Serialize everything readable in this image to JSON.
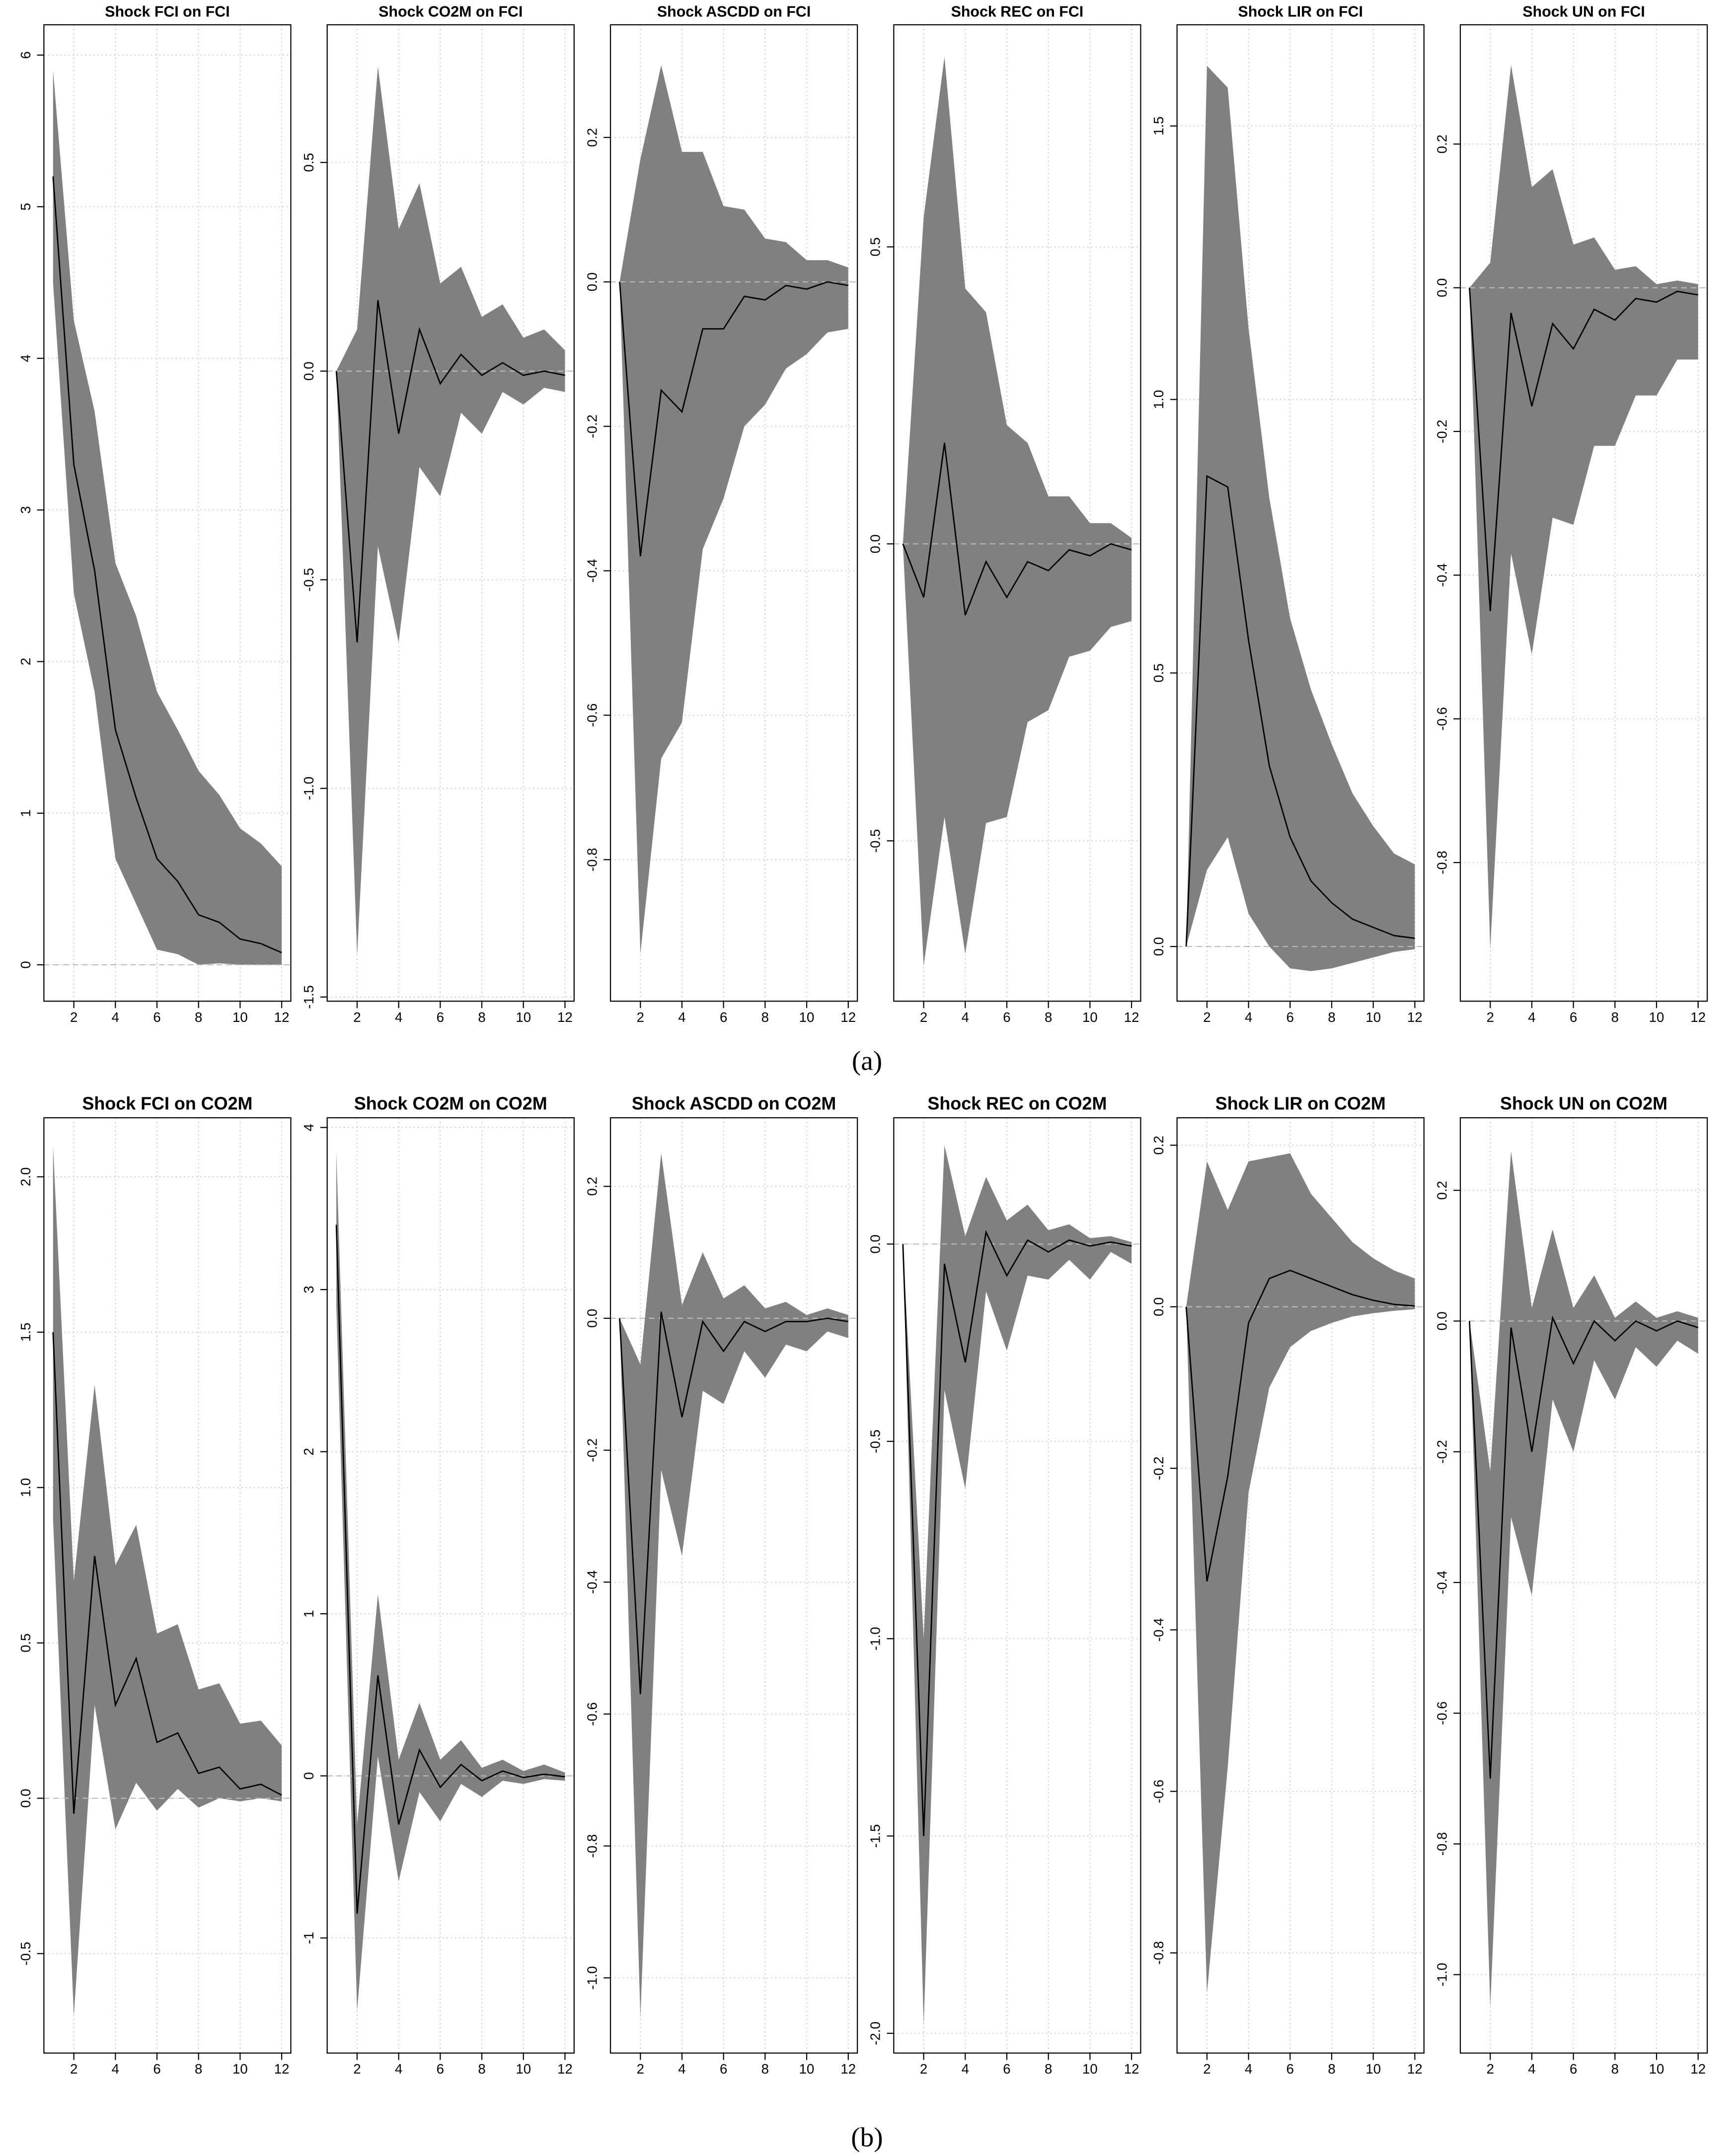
{
  "chart_data": [
    {
      "type": "band-line",
      "title": "Shock FCI on FCI",
      "x": [
        1,
        2,
        3,
        4,
        5,
        6,
        7,
        8,
        9,
        10,
        11,
        12
      ],
      "values": [
        5.2,
        3.3,
        2.6,
        1.55,
        1.1,
        0.7,
        0.55,
        0.33,
        0.28,
        0.17,
        0.14,
        0.08
      ],
      "upper": [
        5.9,
        4.25,
        3.65,
        2.65,
        2.3,
        1.8,
        1.55,
        1.28,
        1.12,
        0.9,
        0.8,
        0.65
      ],
      "lower": [
        4.5,
        2.45,
        1.8,
        0.7,
        0.4,
        0.1,
        0.07,
        0,
        0.01,
        0,
        0,
        0
      ],
      "band_color": "#808080",
      "color": "#000000",
      "xlim": [
        0.56,
        12.44
      ],
      "xticks": [
        2,
        4,
        6,
        8,
        10,
        12
      ],
      "ylim": [
        -0.24,
        6.2
      ],
      "yticks": [
        0,
        1,
        2,
        3,
        4,
        5,
        6
      ],
      "grid": true
    },
    {
      "type": "band-line",
      "title": "Shock CO2M on FCI",
      "x": [
        1,
        2,
        3,
        4,
        5,
        6,
        7,
        8,
        9,
        10,
        11,
        12
      ],
      "values": [
        0,
        -0.65,
        0.17,
        -0.15,
        0.1,
        -0.03,
        0.04,
        -0.01,
        0.02,
        -0.01,
        0,
        -0.01
      ],
      "upper": [
        0,
        0.1,
        0.73,
        0.34,
        0.45,
        0.21,
        0.25,
        0.13,
        0.16,
        0.08,
        0.1,
        0.05
      ],
      "lower": [
        0,
        -1.4,
        -0.42,
        -0.65,
        -0.23,
        -0.3,
        -0.1,
        -0.15,
        -0.05,
        -0.08,
        -0.04,
        -0.05
      ],
      "band_color": "#808080",
      "color": "#000000",
      "xlim": [
        0.56,
        12.44
      ],
      "xticks": [
        2,
        4,
        6,
        8,
        10,
        12
      ],
      "ylim": [
        -1.51,
        0.83
      ],
      "yticks": [
        -1.5,
        {
          "value": -1,
          "label": "-1.0"
        },
        -0.5,
        {
          "value": 0,
          "label": "0.0"
        },
        0.5
      ],
      "grid": true
    },
    {
      "type": "band-line",
      "title": "Shock ASCDD on FCI",
      "x": [
        1,
        2,
        3,
        4,
        5,
        6,
        7,
        8,
        9,
        10,
        11,
        12
      ],
      "values": [
        0,
        -0.38,
        -0.15,
        -0.18,
        -0.065,
        -0.065,
        -0.02,
        -0.025,
        -0.005,
        -0.01,
        0,
        -0.005
      ],
      "upper": [
        0,
        0.17,
        0.3,
        0.18,
        0.18,
        0.105,
        0.1,
        0.06,
        0.055,
        0.03,
        0.03,
        0.02
      ],
      "lower": [
        0,
        -0.93,
        -0.66,
        -0.61,
        -0.37,
        -0.3,
        -0.2,
        -0.17,
        -0.12,
        -0.1,
        -0.07,
        -0.065
      ],
      "band_color": "#808080",
      "color": "#000000",
      "xlim": [
        0.56,
        12.44
      ],
      "xticks": [
        2,
        4,
        6,
        8,
        10,
        12
      ],
      "ylim": [
        -0.996,
        0.356
      ],
      "yticks": [
        -0.8,
        -0.6,
        -0.4,
        -0.2,
        {
          "value": 0,
          "label": "0.0"
        },
        0.2
      ],
      "grid": true
    },
    {
      "type": "band-line",
      "title": "Shock REC on FCI",
      "x": [
        1,
        2,
        3,
        4,
        5,
        6,
        7,
        8,
        9,
        10,
        11,
        12
      ],
      "values": [
        0,
        -0.09,
        0.17,
        -0.12,
        -0.03,
        -0.09,
        -0.03,
        -0.045,
        -0.01,
        -0.02,
        0,
        -0.01
      ],
      "upper": [
        0,
        0.55,
        0.82,
        0.43,
        0.39,
        0.2,
        0.17,
        0.08,
        0.08,
        0.035,
        0.035,
        0.01
      ],
      "lower": [
        0,
        -0.71,
        -0.46,
        -0.69,
        -0.47,
        -0.46,
        -0.3,
        -0.28,
        -0.19,
        -0.18,
        -0.14,
        -0.13
      ],
      "band_color": "#808080",
      "color": "#000000",
      "xlim": [
        0.56,
        12.44
      ],
      "xticks": [
        2,
        4,
        6,
        8,
        10,
        12
      ],
      "ylim": [
        -0.77,
        0.874
      ],
      "yticks": [
        -0.5,
        {
          "value": 0,
          "label": "0.0"
        },
        0.5
      ],
      "grid": true
    },
    {
      "type": "band-line",
      "title": "Shock LIR on FCI",
      "x": [
        1,
        2,
        3,
        4,
        5,
        6,
        7,
        8,
        9,
        10,
        11,
        12
      ],
      "values": [
        0,
        0.86,
        0.84,
        0.56,
        0.33,
        0.2,
        0.12,
        0.08,
        0.05,
        0.035,
        0.02,
        0.015
      ],
      "upper": [
        0,
        1.61,
        1.57,
        1.13,
        0.82,
        0.6,
        0.47,
        0.37,
        0.28,
        0.22,
        0.17,
        0.15
      ],
      "lower": [
        0,
        0.14,
        0.2,
        0.06,
        0,
        -0.04,
        -0.045,
        -0.04,
        -0.03,
        -0.02,
        -0.01,
        -0.005
      ],
      "band_color": "#808080",
      "color": "#000000",
      "xlim": [
        0.56,
        12.44
      ],
      "xticks": [
        2,
        4,
        6,
        8,
        10,
        12
      ],
      "ylim": [
        -0.1,
        1.685
      ],
      "yticks": [
        {
          "value": 0,
          "label": "0.0"
        },
        0.5,
        {
          "value": 1,
          "label": "1.0"
        },
        1.5
      ],
      "grid": true
    },
    {
      "type": "band-line",
      "title": "Shock UN on FCI",
      "x": [
        1,
        2,
        3,
        4,
        5,
        6,
        7,
        8,
        9,
        10,
        11,
        12
      ],
      "values": [
        0,
        -0.45,
        -0.035,
        -0.165,
        -0.05,
        -0.085,
        -0.03,
        -0.045,
        -0.015,
        -0.02,
        -0.005,
        -0.01
      ],
      "upper": [
        0,
        0.035,
        0.31,
        0.14,
        0.165,
        0.06,
        0.07,
        0.025,
        0.03,
        0.005,
        0.01,
        0.005
      ],
      "lower": [
        0,
        -0.92,
        -0.37,
        -0.51,
        -0.32,
        -0.33,
        -0.22,
        -0.22,
        -0.15,
        -0.15,
        -0.1,
        -0.1
      ],
      "band_color": "#808080",
      "color": "#000000",
      "xlim": [
        0.56,
        12.44
      ],
      "xticks": [
        2,
        4,
        6,
        8,
        10,
        12
      ],
      "ylim": [
        -0.993,
        0.366
      ],
      "yticks": [
        -0.8,
        -0.6,
        -0.4,
        -0.2,
        {
          "value": 0,
          "label": "0.0"
        },
        0.2
      ],
      "grid": true
    },
    {
      "type": "band-line",
      "title": "Shock FCI on CO2M",
      "x": [
        1,
        2,
        3,
        4,
        5,
        6,
        7,
        8,
        9,
        10,
        11,
        12
      ],
      "values": [
        1.5,
        -0.05,
        0.78,
        0.3,
        0.45,
        0.18,
        0.21,
        0.08,
        0.1,
        0.03,
        0.045,
        0.01
      ],
      "upper": [
        2.1,
        0.7,
        1.33,
        0.75,
        0.88,
        0.53,
        0.56,
        0.35,
        0.37,
        0.24,
        0.25,
        0.17
      ],
      "lower": [
        0.9,
        -0.7,
        0.3,
        -0.1,
        0.05,
        -0.04,
        0.03,
        -0.03,
        0,
        -0.01,
        0,
        -0.01
      ],
      "band_color": "#808080",
      "color": "#000000",
      "xlim": [
        0.56,
        12.44
      ],
      "xticks": [
        2,
        4,
        6,
        8,
        10,
        12
      ],
      "ylim": [
        -0.82,
        2.19
      ],
      "yticks": [
        -0.5,
        {
          "value": 0,
          "label": "0.0"
        },
        0.5,
        {
          "value": 1,
          "label": "1.0"
        },
        1.5,
        {
          "value": 2,
          "label": "2.0"
        }
      ],
      "grid": true
    },
    {
      "type": "band-line",
      "title": "Shock CO2M on CO2M",
      "x": [
        1,
        2,
        3,
        4,
        5,
        6,
        7,
        8,
        9,
        10,
        11,
        12
      ],
      "values": [
        3.4,
        -0.85,
        0.62,
        -0.3,
        0.16,
        -0.07,
        0.07,
        -0.03,
        0.03,
        -0.01,
        0.01,
        -0.005
      ],
      "upper": [
        3.85,
        -0.3,
        1.12,
        0.1,
        0.45,
        0.1,
        0.22,
        0.05,
        0.1,
        0.03,
        0.07,
        0.02
      ],
      "lower": [
        2.9,
        -1.45,
        0.12,
        -0.65,
        -0.1,
        -0.28,
        -0.05,
        -0.13,
        -0.03,
        -0.05,
        -0.02,
        -0.03
      ],
      "band_color": "#808080",
      "color": "#000000",
      "xlim": [
        0.56,
        12.44
      ],
      "xticks": [
        2,
        4,
        6,
        8,
        10,
        12
      ],
      "ylim": [
        -1.71,
        4.06
      ],
      "yticks": [
        -1,
        0,
        1,
        2,
        3,
        4
      ],
      "grid": true
    },
    {
      "type": "band-line",
      "title": "Shock ASCDD on CO2M",
      "x": [
        1,
        2,
        3,
        4,
        5,
        6,
        7,
        8,
        9,
        10,
        11,
        12
      ],
      "values": [
        0,
        -0.57,
        0.01,
        -0.15,
        -0.005,
        -0.05,
        -0.005,
        -0.02,
        -0.005,
        -0.005,
        0,
        -0.005
      ],
      "upper": [
        0,
        -0.07,
        0.25,
        0.02,
        0.1,
        0.03,
        0.05,
        0.015,
        0.025,
        0.005,
        0.015,
        0.005
      ],
      "lower": [
        0,
        -1.06,
        -0.23,
        -0.36,
        -0.11,
        -0.13,
        -0.05,
        -0.09,
        -0.04,
        -0.05,
        -0.02,
        -0.03
      ],
      "band_color": "#808080",
      "color": "#000000",
      "xlim": [
        0.56,
        12.44
      ],
      "xticks": [
        2,
        4,
        6,
        8,
        10,
        12
      ],
      "ylim": [
        -1.114,
        0.304
      ],
      "yticks": [
        {
          "value": -1,
          "label": "-1.0"
        },
        -0.8,
        -0.6,
        -0.4,
        -0.2,
        {
          "value": 0,
          "label": "0.0"
        },
        0.2
      ],
      "grid": true
    },
    {
      "type": "band-line",
      "title": "Shock REC on CO2M",
      "x": [
        1,
        2,
        3,
        4,
        5,
        6,
        7,
        8,
        9,
        10,
        11,
        12
      ],
      "values": [
        0,
        -1.5,
        -0.05,
        -0.3,
        0.03,
        -0.08,
        0.01,
        -0.02,
        0.01,
        -0.005,
        0.005,
        -0.005
      ],
      "upper": [
        0,
        -1,
        0.25,
        0.02,
        0.17,
        0.06,
        0.1,
        0.035,
        0.05,
        0.015,
        0.02,
        0.005
      ],
      "lower": [
        0,
        -1.98,
        -0.37,
        -0.62,
        -0.12,
        -0.27,
        -0.08,
        -0.09,
        -0.04,
        -0.09,
        -0.02,
        -0.05
      ],
      "band_color": "#808080",
      "color": "#000000",
      "xlim": [
        0.56,
        12.44
      ],
      "xticks": [
        2,
        4,
        6,
        8,
        10,
        12
      ],
      "ylim": [
        -2.05,
        0.32
      ],
      "yticks": [
        {
          "value": -2,
          "label": "-2.0"
        },
        -1.5,
        {
          "value": -1,
          "label": "-1.0"
        },
        -0.5,
        {
          "value": 0,
          "label": "0.0"
        }
      ],
      "grid": true
    },
    {
      "type": "band-line",
      "title": "Shock LIR on CO2M",
      "x": [
        1,
        2,
        3,
        4,
        5,
        6,
        7,
        8,
        9,
        10,
        11,
        12
      ],
      "values": [
        0,
        -0.34,
        -0.21,
        -0.02,
        0.035,
        0.045,
        0.035,
        0.025,
        0.015,
        0.008,
        0.003,
        0.001
      ],
      "upper": [
        0,
        0.18,
        0.12,
        0.18,
        0.185,
        0.19,
        0.14,
        0.11,
        0.08,
        0.06,
        0.045,
        0.035
      ],
      "lower": [
        0,
        -0.85,
        -0.57,
        -0.23,
        -0.1,
        -0.05,
        -0.03,
        -0.02,
        -0.012,
        -0.008,
        -0.005,
        -0.003
      ],
      "band_color": "#808080",
      "color": "#000000",
      "xlim": [
        0.56,
        12.44
      ],
      "xticks": [
        2,
        4,
        6,
        8,
        10,
        12
      ],
      "ylim": [
        -0.924,
        0.234
      ],
      "yticks": [
        -0.8,
        -0.6,
        -0.4,
        -0.2,
        {
          "value": 0,
          "label": "0.0"
        },
        0.2
      ],
      "grid": true
    },
    {
      "type": "band-line",
      "title": "Shock UN on CO2M",
      "x": [
        1,
        2,
        3,
        4,
        5,
        6,
        7,
        8,
        9,
        10,
        11,
        12
      ],
      "values": [
        0,
        -0.7,
        -0.01,
        -0.2,
        0.005,
        -0.065,
        0,
        -0.03,
        0,
        -0.015,
        0,
        -0.01
      ],
      "upper": [
        0,
        -0.23,
        0.26,
        0.02,
        0.14,
        0.02,
        0.07,
        0.005,
        0.03,
        0.005,
        0.015,
        0.005
      ],
      "lower": [
        0,
        -1.05,
        -0.3,
        -0.42,
        -0.12,
        -0.2,
        -0.06,
        -0.12,
        -0.04,
        -0.07,
        -0.03,
        -0.05
      ],
      "band_color": "#808080",
      "color": "#000000",
      "xlim": [
        0.56,
        12.44
      ],
      "xticks": [
        2,
        4,
        6,
        8,
        10,
        12
      ],
      "ylim": [
        -1.12,
        0.311
      ],
      "yticks": [
        {
          "value": -1,
          "label": "-1.0"
        },
        -0.8,
        -0.6,
        -0.4,
        -0.2,
        {
          "value": 0,
          "label": "0.0"
        },
        0.2
      ],
      "grid": true
    }
  ],
  "panel_labels": [
    "(a)",
    "(b)"
  ]
}
